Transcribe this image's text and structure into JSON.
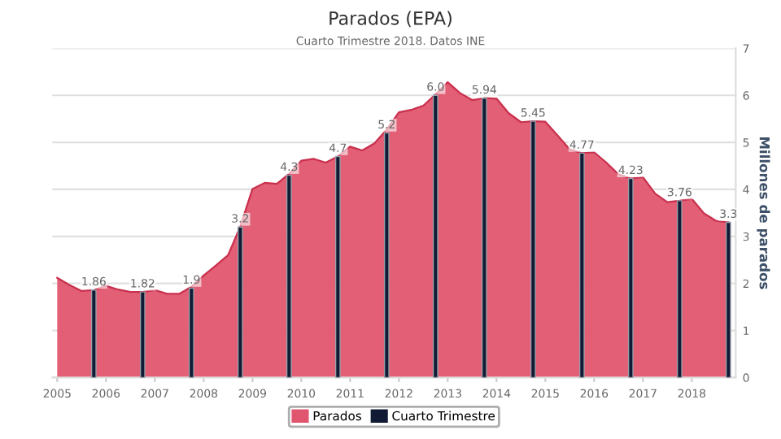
{
  "chart_data": {
    "type": "area",
    "title": "Parados (EPA)",
    "subtitle": "Cuarto Trimestre 2018. Datos INE",
    "ylabel": "Millones de parados",
    "xlim": [
      2004.9,
      2018.9
    ],
    "xticks": [
      2005,
      2006,
      2007,
      2008,
      2009,
      2010,
      2011,
      2012,
      2013,
      2014,
      2015,
      2016,
      2017,
      2018
    ],
    "ylim": [
      0,
      7
    ],
    "yticks": [
      0,
      1,
      2,
      3,
      4,
      5,
      6,
      7
    ],
    "grid": "y",
    "legend": "bottom",
    "series": [
      {
        "name": "Parados",
        "color": "#e0566f",
        "x": [
          2005,
          2005.25,
          2005.5,
          2005.75,
          2006,
          2006.25,
          2006.5,
          2006.75,
          2007,
          2007.25,
          2007.5,
          2007.75,
          2008,
          2008.25,
          2008.5,
          2008.75,
          2009,
          2009.25,
          2009.5,
          2009.75,
          2010,
          2010.25,
          2010.5,
          2010.75,
          2011,
          2011.25,
          2011.5,
          2011.75,
          2012,
          2012.25,
          2012.5,
          2012.75,
          2013,
          2013.25,
          2013.5,
          2013.75,
          2014,
          2014.25,
          2014.5,
          2014.75,
          2015,
          2015.25,
          2015.5,
          2015.75,
          2016,
          2016.25,
          2016.5,
          2016.75,
          2017,
          2017.25,
          2017.5,
          2017.75,
          2018,
          2018.25,
          2018.5,
          2018.75
        ],
        "values": [
          2.12,
          1.97,
          1.84,
          1.86,
          1.95,
          1.87,
          1.82,
          1.82,
          1.86,
          1.78,
          1.78,
          1.93,
          2.17,
          2.38,
          2.6,
          3.21,
          4.01,
          4.14,
          4.12,
          4.33,
          4.61,
          4.65,
          4.57,
          4.7,
          4.91,
          4.83,
          4.98,
          5.27,
          5.64,
          5.69,
          5.78,
          6.02,
          6.28,
          6.05,
          5.9,
          5.94,
          5.93,
          5.62,
          5.43,
          5.45,
          5.44,
          5.15,
          4.85,
          4.77,
          4.79,
          4.57,
          4.32,
          4.23,
          4.26,
          3.91,
          3.73,
          3.76,
          3.8,
          3.49,
          3.33,
          3.3
        ]
      },
      {
        "name": "Cuarto Trimestre",
        "type": "bar",
        "color": "#111b33",
        "x": [
          2005.75,
          2006.75,
          2007.75,
          2008.75,
          2009.75,
          2010.75,
          2011.75,
          2012.75,
          2013.75,
          2014.75,
          2015.75,
          2016.75,
          2017.75,
          2018.75
        ],
        "values": [
          1.86,
          1.82,
          1.9,
          3.2,
          4.3,
          4.7,
          5.2,
          6.0,
          5.94,
          5.45,
          4.77,
          4.23,
          3.76,
          3.3
        ],
        "value_labels": [
          "1.86",
          "1.82",
          "1.9",
          "3.2",
          "4.3",
          "4.7",
          "5.2",
          "6.0",
          "5.94",
          "5.45",
          "4.77",
          "4.23",
          "3.76",
          "3.3"
        ]
      }
    ]
  }
}
